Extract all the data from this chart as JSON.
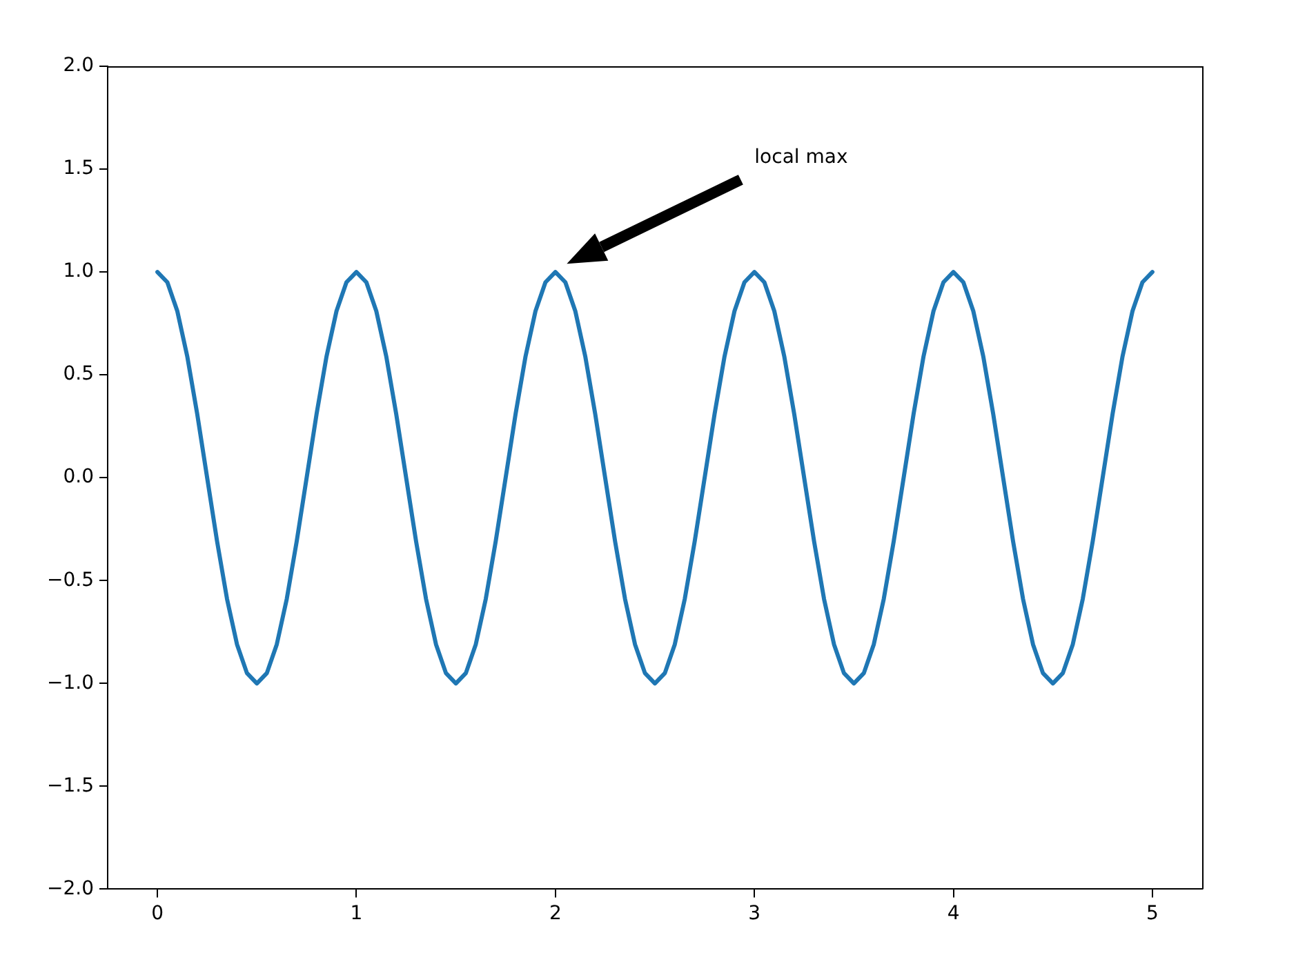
{
  "chart_data": {
    "type": "line",
    "x": [
      0,
      0.05,
      0.1,
      0.15,
      0.2,
      0.25,
      0.3,
      0.35,
      0.4,
      0.45,
      0.5,
      0.55,
      0.6,
      0.65,
      0.7,
      0.75,
      0.8,
      0.85,
      0.9,
      0.95,
      1,
      1.05,
      1.1,
      1.15,
      1.2,
      1.25,
      1.3,
      1.35,
      1.4,
      1.45,
      1.5,
      1.55,
      1.6,
      1.65,
      1.7,
      1.75,
      1.8,
      1.85,
      1.9,
      1.95,
      2,
      2.05,
      2.1,
      2.15,
      2.2,
      2.25,
      2.3,
      2.35,
      2.4,
      2.45,
      2.5,
      2.55,
      2.6,
      2.65,
      2.7,
      2.75,
      2.8,
      2.85,
      2.9,
      2.95,
      3,
      3.05,
      3.1,
      3.15,
      3.2,
      3.25,
      3.3,
      3.35,
      3.4,
      3.45,
      3.5,
      3.55,
      3.6,
      3.65,
      3.7,
      3.75,
      3.8,
      3.85,
      3.9,
      3.95,
      4,
      4.05,
      4.1,
      4.15,
      4.2,
      4.25,
      4.3,
      4.35,
      4.4,
      4.45,
      4.5,
      4.55,
      4.6,
      4.65,
      4.7,
      4.75,
      4.8,
      4.85,
      4.9,
      4.95,
      5
    ],
    "series": [
      {
        "color": "#1f77b4",
        "values": [
          1,
          0.95,
          0.81,
          0.59,
          0.31,
          0,
          -0.31,
          -0.59,
          -0.81,
          -0.95,
          -1,
          -0.95,
          -0.81,
          -0.59,
          -0.31,
          0,
          0.31,
          0.59,
          0.81,
          0.95,
          1,
          0.95,
          0.81,
          0.59,
          0.31,
          0,
          -0.31,
          -0.59,
          -0.81,
          -0.95,
          -1,
          -0.95,
          -0.81,
          -0.59,
          -0.31,
          0,
          0.31,
          0.59,
          0.81,
          0.95,
          1,
          0.95,
          0.81,
          0.59,
          0.31,
          0,
          -0.31,
          -0.59,
          -0.81,
          -0.95,
          -1,
          -0.95,
          -0.81,
          -0.59,
          -0.31,
          0,
          0.31,
          0.59,
          0.81,
          0.95,
          1,
          0.95,
          0.81,
          0.59,
          0.31,
          0,
          -0.31,
          -0.59,
          -0.81,
          -0.95,
          -1,
          -0.95,
          -0.81,
          -0.59,
          -0.31,
          0,
          0.31,
          0.59,
          0.81,
          0.95,
          1,
          0.95,
          0.81,
          0.59,
          0.31,
          0,
          -0.31,
          -0.59,
          -0.81,
          -0.95,
          -1,
          -0.95,
          -0.81,
          -0.59,
          -0.31,
          0,
          0.31,
          0.59,
          0.81,
          0.95,
          1
        ]
      }
    ],
    "xlim": [
      -0.25,
      5.25
    ],
    "ylim": [
      -2,
      2
    ],
    "xticks": [
      0,
      1,
      2,
      3,
      4,
      5
    ],
    "yticks": [
      {
        "value": -2,
        "label": "−2.0"
      },
      {
        "value": -1.5,
        "label": "−1.5"
      },
      {
        "value": -1,
        "label": "−1.0"
      },
      {
        "value": -0.5,
        "label": "−0.5"
      },
      {
        "value": 0,
        "label": "0.0"
      },
      {
        "value": 0.5,
        "label": "0.5"
      },
      {
        "value": 1,
        "label": "1.0"
      },
      {
        "value": 1.5,
        "label": "1.5"
      },
      {
        "value": 2,
        "label": "2.0"
      }
    ],
    "annotations": [
      "local max"
    ],
    "grid": false,
    "legend": false,
    "marker": "none",
    "line_style": "solid"
  }
}
